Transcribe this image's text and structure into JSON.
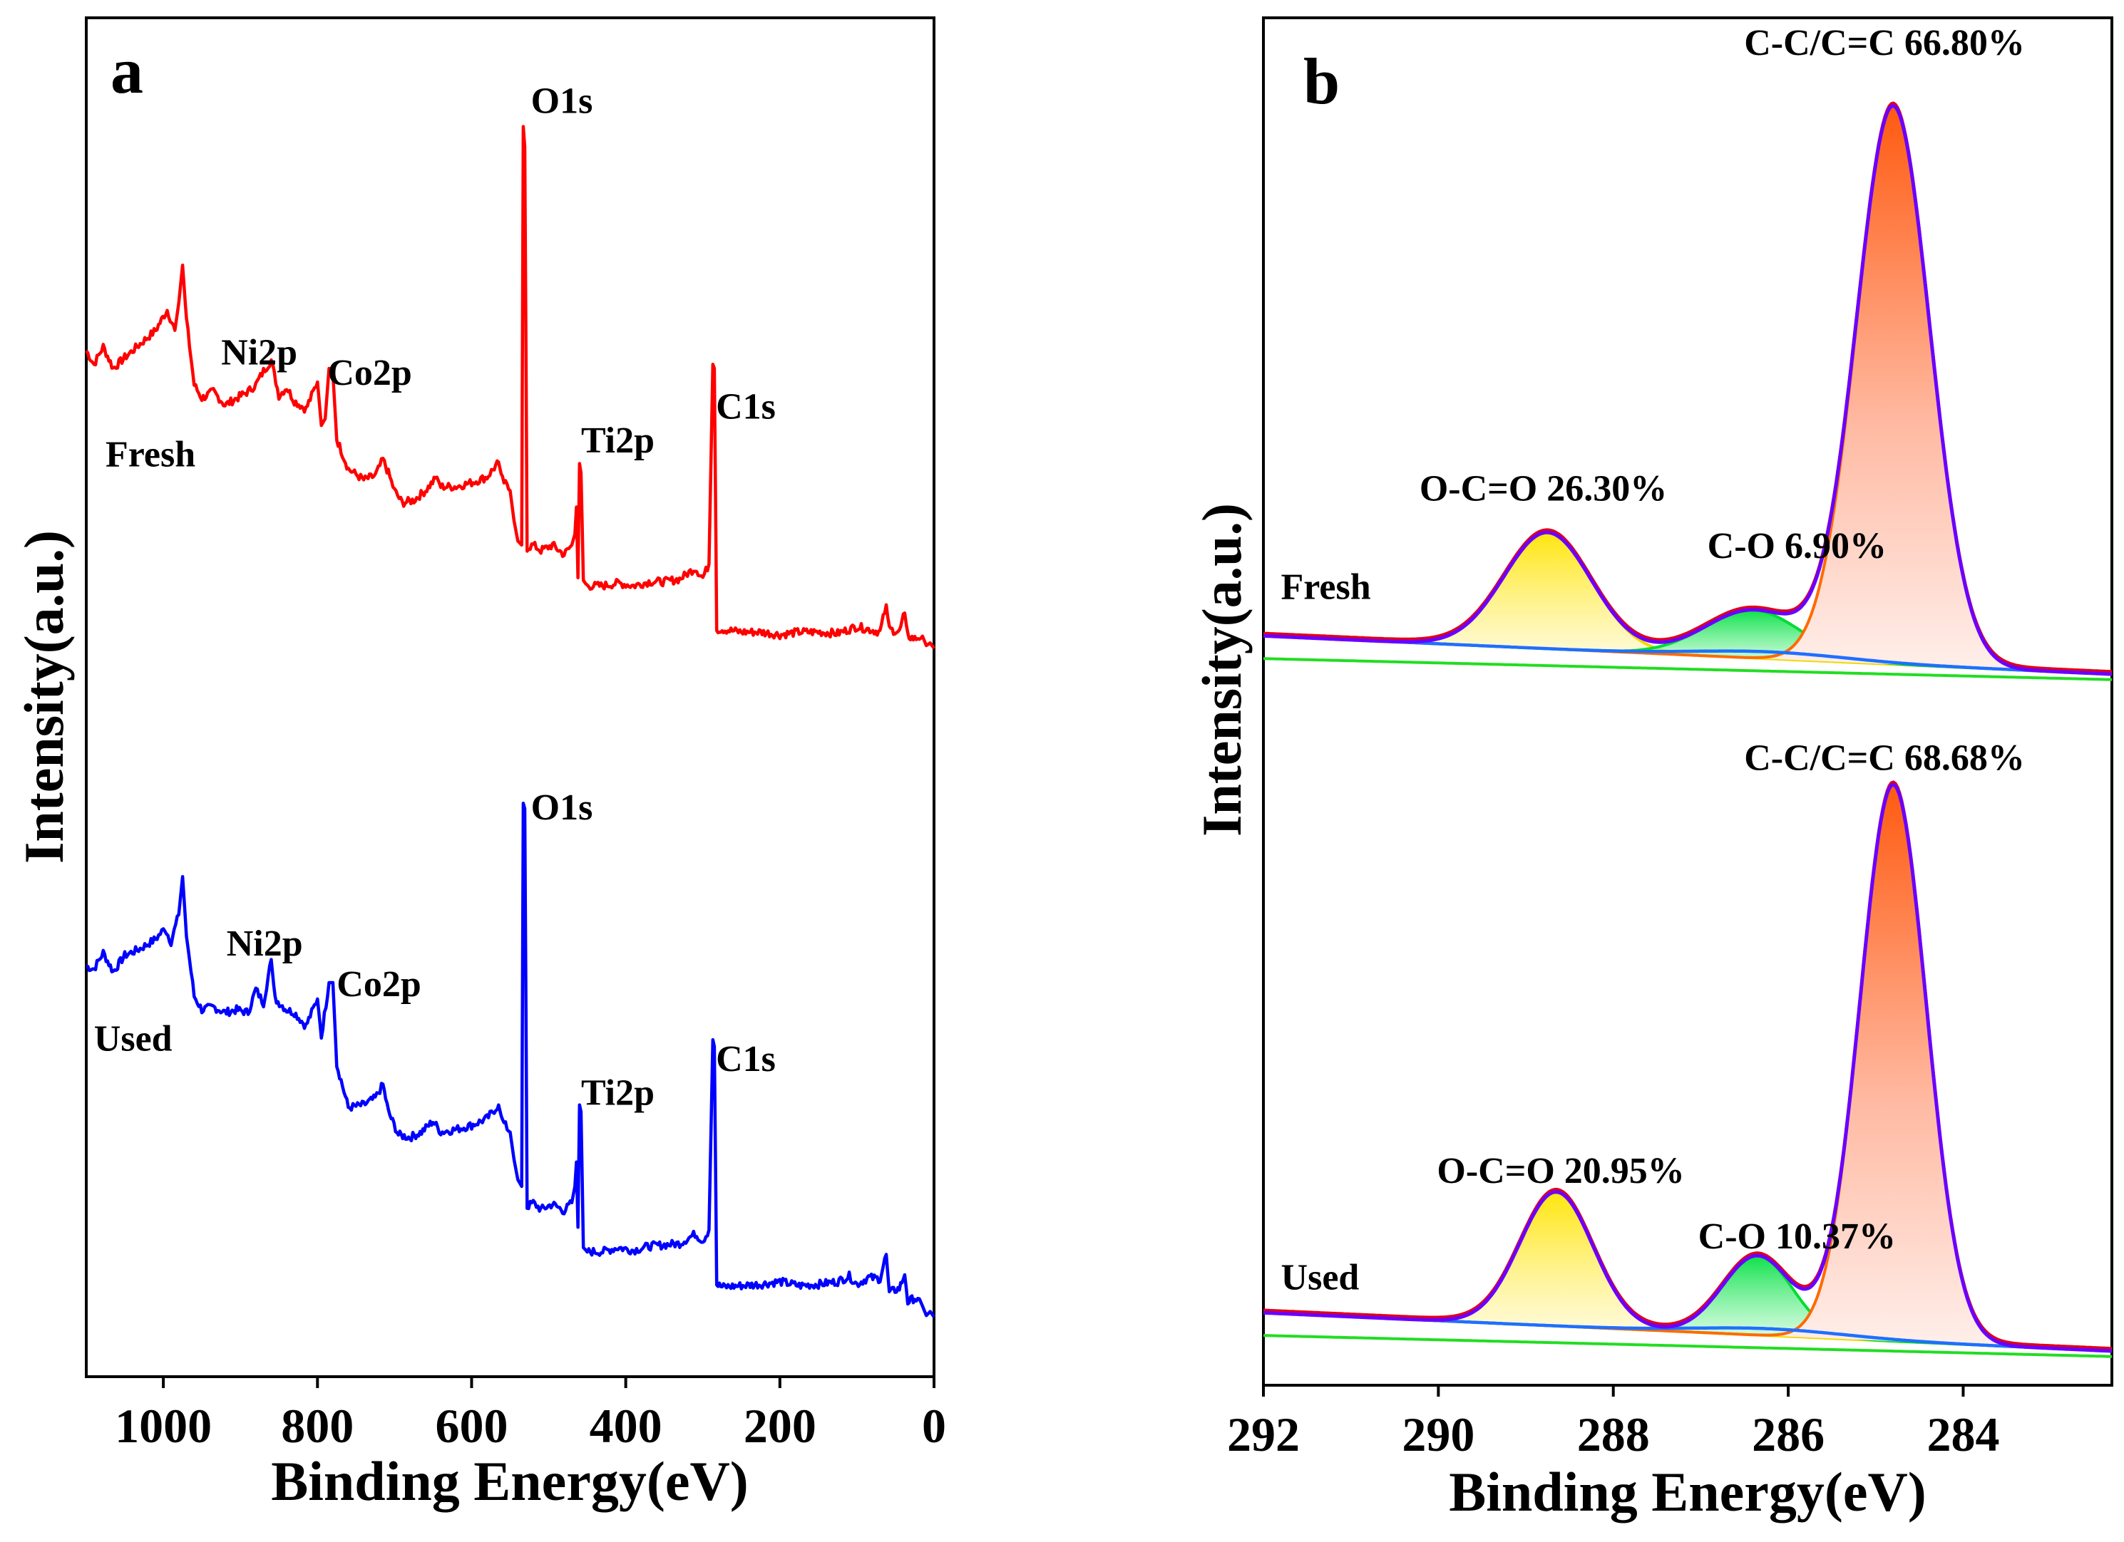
{
  "chart_data": [
    {
      "panel": "a",
      "type": "line",
      "title": "",
      "xlabel": "Binding Energy(eV)",
      "ylabel": "Intensity(a.u.)",
      "xlim": [
        1100,
        0
      ],
      "x_ticks": [
        1000,
        800,
        600,
        400,
        200,
        0
      ],
      "x_tick_labels": [
        "1000",
        "800",
        "600",
        "400",
        "200",
        "0"
      ],
      "y_ticks": "none",
      "series": [
        {
          "name": "Fresh",
          "color": "#ff0000",
          "baseline_level": 0.535,
          "points": [
            [
              1100,
              0.755
            ],
            [
              1090,
              0.745
            ],
            [
              1078,
              0.758
            ],
            [
              1065,
              0.742
            ],
            [
              1050,
              0.75
            ],
            [
              1030,
              0.76
            ],
            [
              1010,
              0.77
            ],
            [
              995,
              0.785
            ],
            [
              985,
              0.77
            ],
            [
              980,
              0.79
            ],
            [
              975,
              0.818
            ],
            [
              970,
              0.778
            ],
            [
              960,
              0.73
            ],
            [
              950,
              0.72
            ],
            [
              935,
              0.725
            ],
            [
              920,
              0.715
            ],
            [
              905,
              0.72
            ],
            [
              890,
              0.725
            ],
            [
              880,
              0.73
            ],
            [
              870,
              0.74
            ],
            [
              860,
              0.748
            ],
            [
              850,
              0.722
            ],
            [
              840,
              0.728
            ],
            [
              830,
              0.718
            ],
            [
              815,
              0.712
            ],
            [
              800,
              0.732
            ],
            [
              795,
              0.7
            ],
            [
              790,
              0.705
            ],
            [
              785,
              0.742
            ],
            [
              780,
              0.738
            ],
            [
              775,
              0.69
            ],
            [
              760,
              0.668
            ],
            [
              740,
              0.66
            ],
            [
              725,
              0.663
            ],
            [
              715,
              0.675
            ],
            [
              708,
              0.665
            ],
            [
              700,
              0.652
            ],
            [
              690,
              0.643
            ],
            [
              675,
              0.645
            ],
            [
              660,
              0.652
            ],
            [
              645,
              0.662
            ],
            [
              640,
              0.655
            ],
            [
              620,
              0.655
            ],
            [
              600,
              0.658
            ],
            [
              580,
              0.662
            ],
            [
              565,
              0.673
            ],
            [
              560,
              0.66
            ],
            [
              550,
              0.652
            ],
            [
              545,
              0.63
            ],
            [
              540,
              0.615
            ],
            [
              535,
              0.612
            ],
            [
              533,
              0.92
            ],
            [
              531,
              0.905
            ],
            [
              528,
              0.61
            ],
            [
              520,
              0.612
            ],
            [
              510,
              0.608
            ],
            [
              495,
              0.612
            ],
            [
              480,
              0.605
            ],
            [
              470,
              0.612
            ],
            [
              466,
              0.62
            ],
            [
              464,
              0.64
            ],
            [
              462,
              0.588
            ],
            [
              460,
              0.672
            ],
            [
              458,
              0.665
            ],
            [
              455,
              0.586
            ],
            [
              450,
              0.582
            ],
            [
              430,
              0.582
            ],
            [
              410,
              0.584
            ],
            [
              390,
              0.582
            ],
            [
              370,
              0.585
            ],
            [
              350,
              0.585
            ],
            [
              330,
              0.587
            ],
            [
              310,
              0.595
            ],
            [
              300,
              0.588
            ],
            [
              292,
              0.598
            ],
            [
              287,
              0.745
            ],
            [
              285,
              0.742
            ],
            [
              282,
              0.55
            ],
            [
              275,
              0.55
            ],
            [
              250,
              0.548
            ],
            [
              225,
              0.548
            ],
            [
              200,
              0.546
            ],
            [
              175,
              0.548
            ],
            [
              150,
              0.548
            ],
            [
              125,
              0.547
            ],
            [
              100,
              0.552
            ],
            [
              85,
              0.55
            ],
            [
              70,
              0.548
            ],
            [
              62,
              0.568
            ],
            [
              58,
              0.55
            ],
            [
              45,
              0.548
            ],
            [
              38,
              0.562
            ],
            [
              34,
              0.545
            ],
            [
              25,
              0.543
            ],
            [
              15,
              0.545
            ],
            [
              10,
              0.538
            ],
            [
              5,
              0.54
            ],
            [
              0,
              0.536
            ]
          ]
        },
        {
          "name": "Used",
          "color": "#0000ff",
          "baseline_level": 0.048,
          "points": [
            [
              1100,
              0.302
            ],
            [
              1090,
              0.3
            ],
            [
              1078,
              0.312
            ],
            [
              1065,
              0.298
            ],
            [
              1050,
              0.31
            ],
            [
              1030,
              0.315
            ],
            [
              1010,
              0.322
            ],
            [
              998,
              0.33
            ],
            [
              990,
              0.32
            ],
            [
              980,
              0.34
            ],
            [
              975,
              0.368
            ],
            [
              970,
              0.325
            ],
            [
              960,
              0.28
            ],
            [
              950,
              0.27
            ],
            [
              935,
              0.272
            ],
            [
              920,
              0.268
            ],
            [
              905,
              0.27
            ],
            [
              890,
              0.268
            ],
            [
              880,
              0.285
            ],
            [
              870,
              0.275
            ],
            [
              860,
              0.307
            ],
            [
              855,
              0.278
            ],
            [
              840,
              0.27
            ],
            [
              830,
              0.268
            ],
            [
              815,
              0.258
            ],
            [
              800,
              0.278
            ],
            [
              795,
              0.25
            ],
            [
              785,
              0.29
            ],
            [
              780,
              0.29
            ],
            [
              775,
              0.23
            ],
            [
              760,
              0.198
            ],
            [
              740,
              0.2
            ],
            [
              725,
              0.205
            ],
            [
              715,
              0.215
            ],
            [
              708,
              0.195
            ],
            [
              695,
              0.178
            ],
            [
              680,
              0.176
            ],
            [
              665,
              0.18
            ],
            [
              650,
              0.188
            ],
            [
              640,
              0.18
            ],
            [
              620,
              0.182
            ],
            [
              600,
              0.185
            ],
            [
              580,
              0.19
            ],
            [
              565,
              0.2
            ],
            [
              560,
              0.188
            ],
            [
              550,
              0.18
            ],
            [
              545,
              0.16
            ],
            [
              540,
              0.145
            ],
            [
              535,
              0.14
            ],
            [
              533,
              0.422
            ],
            [
              531,
              0.418
            ],
            [
              528,
              0.125
            ],
            [
              520,
              0.128
            ],
            [
              510,
              0.123
            ],
            [
              495,
              0.127
            ],
            [
              480,
              0.122
            ],
            [
              470,
              0.128
            ],
            [
              466,
              0.14
            ],
            [
              464,
              0.158
            ],
            [
              462,
              0.11
            ],
            [
              460,
              0.2
            ],
            [
              458,
              0.195
            ],
            [
              455,
              0.095
            ],
            [
              450,
              0.092
            ],
            [
              430,
              0.092
            ],
            [
              410,
              0.095
            ],
            [
              390,
              0.093
            ],
            [
              370,
              0.096
            ],
            [
              350,
              0.097
            ],
            [
              330,
              0.098
            ],
            [
              310,
              0.105
            ],
            [
              300,
              0.1
            ],
            [
              292,
              0.108
            ],
            [
              287,
              0.248
            ],
            [
              285,
              0.243
            ],
            [
              282,
              0.068
            ],
            [
              275,
              0.066
            ],
            [
              250,
              0.067
            ],
            [
              225,
              0.068
            ],
            [
              200,
              0.07
            ],
            [
              175,
              0.067
            ],
            [
              150,
              0.068
            ],
            [
              125,
              0.07
            ],
            [
              110,
              0.074
            ],
            [
              100,
              0.068
            ],
            [
              85,
              0.073
            ],
            [
              70,
              0.072
            ],
            [
              62,
              0.09
            ],
            [
              58,
              0.062
            ],
            [
              45,
              0.065
            ],
            [
              38,
              0.075
            ],
            [
              34,
              0.055
            ],
            [
              25,
              0.058
            ],
            [
              15,
              0.052
            ],
            [
              10,
              0.045
            ],
            [
              5,
              0.048
            ],
            [
              0,
              0.044
            ]
          ]
        }
      ],
      "labels": [
        {
          "text": "O1s",
          "x": 523,
          "y": 0.93
        },
        {
          "text": "Ni2p",
          "x": 925,
          "y": 0.745
        },
        {
          "text": "Co2p",
          "x": 787,
          "y": 0.73
        },
        {
          "text": "Ti2p",
          "x": 458,
          "y": 0.68
        },
        {
          "text": "C1s",
          "x": 283,
          "y": 0.705
        },
        {
          "text": "Fresh",
          "x": 1075,
          "y": 0.67
        },
        {
          "text": "O1s",
          "x": 523,
          "y": 0.41
        },
        {
          "text": "Ni2p",
          "x": 918,
          "y": 0.31
        },
        {
          "text": "Co2p",
          "x": 775,
          "y": 0.28
        },
        {
          "text": "Ti2p",
          "x": 458,
          "y": 0.2
        },
        {
          "text": "C1s",
          "x": 283,
          "y": 0.225
        },
        {
          "text": "Used",
          "x": 1090,
          "y": 0.24
        }
      ],
      "panel_label": "a"
    },
    {
      "panel": "b",
      "type": "area",
      "title": "",
      "xlabel": "Binding Energy(eV)",
      "ylabel": "Intensity(a.u.)",
      "xlim": [
        292,
        282.3
      ],
      "x_ticks": [
        292,
        290,
        288,
        286,
        284
      ],
      "x_tick_labels": [
        "292",
        "290",
        "288",
        "286",
        "284"
      ],
      "y_ticks": "none",
      "panels": [
        {
          "name": "Fresh",
          "offset": 0.52,
          "background": {
            "start": 0.028,
            "end": 0.0
          },
          "peaks": [
            {
              "name": "O-C=O",
              "label": "O-C=O 26.30%",
              "center": 288.75,
              "height": 0.085,
              "width": 0.5,
              "color": "#fff200"
            },
            {
              "name": "C-O",
              "label": "C-O 6.90%",
              "center": 286.4,
              "height": 0.035,
              "width": 0.55,
              "color": "#00e000"
            },
            {
              "name": "C-C/C=C",
              "label": "C-C/C=C 66.80%",
              "center": 284.8,
              "height": 0.408,
              "width": 0.42,
              "color": "#ff6a1a"
            }
          ]
        },
        {
          "name": "Used",
          "offset": 0.025,
          "background": {
            "start": 0.028,
            "end": 0.0
          },
          "peaks": [
            {
              "name": "O-C=O",
              "label": "O-C=O 20.95%",
              "center": 288.65,
              "height": 0.098,
              "width": 0.42,
              "color": "#fff200"
            },
            {
              "name": "C-O",
              "label": "C-O 10.37%",
              "center": 286.35,
              "height": 0.058,
              "width": 0.4,
              "color": "#00e000"
            },
            {
              "name": "C-C/C=C",
              "label": "C-C/C=C 68.68%",
              "center": 284.8,
              "height": 0.407,
              "width": 0.38,
              "color": "#ff6a1a"
            }
          ]
        }
      ],
      "labels": [
        {
          "text": "C-C/C=C 66.80%",
          "x": 284.9,
          "y": 0.973
        },
        {
          "text": "O-C=O 26.30%",
          "x": 288.8,
          "y": 0.647
        },
        {
          "text": "C-O 6.90%",
          "x": 285.9,
          "y": 0.605
        },
        {
          "text": "Fresh",
          "x": 291.8,
          "y": 0.575
        },
        {
          "text": "C-C/C=C 68.68%",
          "x": 284.9,
          "y": 0.45
        },
        {
          "text": "O-C=O 20.95%",
          "x": 288.6,
          "y": 0.148
        },
        {
          "text": "C-O 10.37%",
          "x": 285.9,
          "y": 0.1
        },
        {
          "text": "Used",
          "x": 291.8,
          "y": 0.07
        }
      ],
      "fit_color": "#6a00ff",
      "raw_color": "#e0001a",
      "bg_color": "#1f6fff",
      "green_bg_color": "#22dd22",
      "panel_label": "b"
    }
  ]
}
